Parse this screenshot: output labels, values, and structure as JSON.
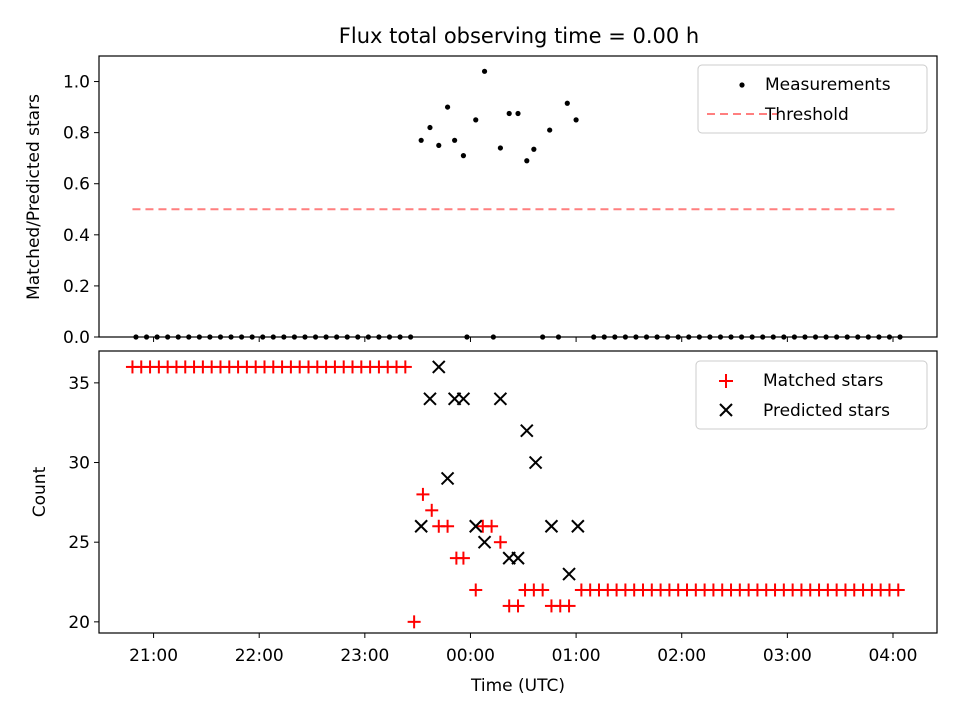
{
  "figure": {
    "title": "Flux total observing time = 0.00 h"
  },
  "chart_data": [
    {
      "type": "scatter",
      "title": "Flux total observing time = 0.00 h",
      "xlabel": "",
      "ylabel": "Matched/Predicted stars",
      "xlim": [
        "20:29",
        "04:25"
      ],
      "ylim": [
        0,
        1.1
      ],
      "yticks": [
        0.0,
        0.2,
        0.4,
        0.6,
        0.8,
        1.0
      ],
      "ytick_labels": [
        "0.0",
        "0.2",
        "0.4",
        "0.6",
        "0.8",
        "1.0"
      ],
      "grid": false,
      "legend_position": "top-right",
      "series": [
        {
          "name": "Measurements",
          "kind": "scatter",
          "color": "#000000",
          "marker": "dot",
          "points": [
            [
              "20:50",
              0
            ],
            [
              "20:56",
              0
            ],
            [
              "21:02",
              0
            ],
            [
              "21:08",
              0
            ],
            [
              "21:14",
              0
            ],
            [
              "21:20",
              0
            ],
            [
              "21:26",
              0
            ],
            [
              "21:32",
              0
            ],
            [
              "21:38",
              0
            ],
            [
              "21:44",
              0
            ],
            [
              "21:50",
              0
            ],
            [
              "21:56",
              0
            ],
            [
              "22:02",
              0
            ],
            [
              "22:08",
              0
            ],
            [
              "22:14",
              0
            ],
            [
              "22:20",
              0
            ],
            [
              "22:26",
              0
            ],
            [
              "22:32",
              0
            ],
            [
              "22:38",
              0
            ],
            [
              "22:44",
              0
            ],
            [
              "22:50",
              0
            ],
            [
              "22:56",
              0
            ],
            [
              "23:02",
              0
            ],
            [
              "23:08",
              0
            ],
            [
              "23:14",
              0
            ],
            [
              "23:20",
              0
            ],
            [
              "23:26",
              0
            ],
            [
              "23:32",
              0.77
            ],
            [
              "23:37",
              0.82
            ],
            [
              "23:42",
              0.75
            ],
            [
              "23:47",
              0.9
            ],
            [
              "23:51",
              0.77
            ],
            [
              "23:56",
              0.71
            ],
            [
              "23:58",
              0
            ],
            [
              "00:03",
              0.85
            ],
            [
              "00:08",
              1.04
            ],
            [
              "00:13",
              0
            ],
            [
              "00:17",
              0.74
            ],
            [
              "00:22",
              0.875
            ],
            [
              "00:27",
              0.875
            ],
            [
              "00:32",
              0.69
            ],
            [
              "00:36",
              0.735
            ],
            [
              "00:41",
              0
            ],
            [
              "00:45",
              0.81
            ],
            [
              "00:50",
              0
            ],
            [
              "00:55",
              0.915
            ],
            [
              "01:00",
              0.85
            ],
            [
              "01:10",
              0
            ],
            [
              "01:16",
              0
            ],
            [
              "01:22",
              0
            ],
            [
              "01:28",
              0
            ],
            [
              "01:34",
              0
            ],
            [
              "01:40",
              0
            ],
            [
              "01:46",
              0
            ],
            [
              "01:52",
              0
            ],
            [
              "01:58",
              0
            ],
            [
              "02:04",
              0
            ],
            [
              "02:10",
              0
            ],
            [
              "02:16",
              0
            ],
            [
              "02:22",
              0
            ],
            [
              "02:28",
              0
            ],
            [
              "02:34",
              0
            ],
            [
              "02:40",
              0
            ],
            [
              "02:46",
              0
            ],
            [
              "02:52",
              0
            ],
            [
              "02:58",
              0
            ],
            [
              "03:04",
              0
            ],
            [
              "03:10",
              0
            ],
            [
              "03:16",
              0
            ],
            [
              "03:22",
              0
            ],
            [
              "03:28",
              0
            ],
            [
              "03:34",
              0
            ],
            [
              "03:40",
              0
            ],
            [
              "03:46",
              0
            ],
            [
              "03:52",
              0
            ],
            [
              "03:58",
              0
            ],
            [
              "04:04",
              0
            ]
          ]
        },
        {
          "name": "Threshold",
          "kind": "line",
          "color": "#ff7f7f",
          "dash": "dashed",
          "x": [
            "20:48",
            "04:03"
          ],
          "y": [
            0.5,
            0.5
          ]
        }
      ]
    },
    {
      "type": "scatter",
      "title": "",
      "xlabel": "Time (UTC)",
      "ylabel": "Count",
      "xlim": [
        "20:29",
        "04:25"
      ],
      "ylim": [
        19.3,
        37
      ],
      "yticks": [
        20,
        25,
        30,
        35
      ],
      "ytick_labels": [
        "20",
        "25",
        "30",
        "35"
      ],
      "xticks": [
        "21:00",
        "22:00",
        "23:00",
        "00:00",
        "01:00",
        "02:00",
        "03:00",
        "04:00"
      ],
      "xtick_labels": [
        "21:00",
        "22:00",
        "23:00",
        "00:00",
        "01:00",
        "02:00",
        "03:00",
        "04:00"
      ],
      "grid": false,
      "legend_position": "top-right",
      "series": [
        {
          "name": "Matched stars",
          "kind": "scatter",
          "color": "#ff0000",
          "marker": "plus",
          "points": [
            [
              "20:48",
              36
            ],
            [
              "20:53",
              36
            ],
            [
              "20:58",
              36
            ],
            [
              "21:03",
              36
            ],
            [
              "21:08",
              36
            ],
            [
              "21:13",
              36
            ],
            [
              "21:18",
              36
            ],
            [
              "21:23",
              36
            ],
            [
              "21:28",
              36
            ],
            [
              "21:33",
              36
            ],
            [
              "21:38",
              36
            ],
            [
              "21:43",
              36
            ],
            [
              "21:48",
              36
            ],
            [
              "21:53",
              36
            ],
            [
              "21:58",
              36
            ],
            [
              "22:03",
              36
            ],
            [
              "22:08",
              36
            ],
            [
              "22:13",
              36
            ],
            [
              "22:18",
              36
            ],
            [
              "22:23",
              36
            ],
            [
              "22:28",
              36
            ],
            [
              "22:33",
              36
            ],
            [
              "22:38",
              36
            ],
            [
              "22:43",
              36
            ],
            [
              "22:48",
              36
            ],
            [
              "22:53",
              36
            ],
            [
              "22:58",
              36
            ],
            [
              "23:03",
              36
            ],
            [
              "23:08",
              36
            ],
            [
              "23:13",
              36
            ],
            [
              "23:18",
              36
            ],
            [
              "23:23",
              36
            ],
            [
              "23:28",
              20
            ],
            [
              "23:33",
              28
            ],
            [
              "23:38",
              27
            ],
            [
              "23:42",
              26
            ],
            [
              "23:47",
              26
            ],
            [
              "23:52",
              24
            ],
            [
              "23:56",
              24
            ],
            [
              "00:03",
              22
            ],
            [
              "00:07",
              26
            ],
            [
              "00:12",
              26
            ],
            [
              "00:17",
              25
            ],
            [
              "00:22",
              21
            ],
            [
              "00:27",
              21
            ],
            [
              "00:31",
              22
            ],
            [
              "00:36",
              22
            ],
            [
              "00:41",
              22
            ],
            [
              "00:46",
              21
            ],
            [
              "00:51",
              21
            ],
            [
              "00:56",
              21
            ],
            [
              "01:03",
              22
            ],
            [
              "01:08",
              22
            ],
            [
              "01:13",
              22
            ],
            [
              "01:18",
              22
            ],
            [
              "01:23",
              22
            ],
            [
              "01:28",
              22
            ],
            [
              "01:33",
              22
            ],
            [
              "01:38",
              22
            ],
            [
              "01:43",
              22
            ],
            [
              "01:48",
              22
            ],
            [
              "01:53",
              22
            ],
            [
              "01:58",
              22
            ],
            [
              "02:03",
              22
            ],
            [
              "02:08",
              22
            ],
            [
              "02:13",
              22
            ],
            [
              "02:18",
              22
            ],
            [
              "02:23",
              22
            ],
            [
              "02:28",
              22
            ],
            [
              "02:33",
              22
            ],
            [
              "02:38",
              22
            ],
            [
              "02:43",
              22
            ],
            [
              "02:48",
              22
            ],
            [
              "02:53",
              22
            ],
            [
              "02:58",
              22
            ],
            [
              "03:03",
              22
            ],
            [
              "03:08",
              22
            ],
            [
              "03:13",
              22
            ],
            [
              "03:18",
              22
            ],
            [
              "03:23",
              22
            ],
            [
              "03:28",
              22
            ],
            [
              "03:33",
              22
            ],
            [
              "03:38",
              22
            ],
            [
              "03:43",
              22
            ],
            [
              "03:48",
              22
            ],
            [
              "03:53",
              22
            ],
            [
              "03:58",
              22
            ],
            [
              "04:03",
              22
            ]
          ]
        },
        {
          "name": "Predicted stars",
          "kind": "scatter",
          "color": "#000000",
          "marker": "x",
          "points": [
            [
              "23:32",
              26
            ],
            [
              "23:37",
              34
            ],
            [
              "23:42",
              36
            ],
            [
              "23:47",
              29
            ],
            [
              "23:51",
              34
            ],
            [
              "23:56",
              34
            ],
            [
              "00:03",
              26
            ],
            [
              "00:08",
              25
            ],
            [
              "00:17",
              34
            ],
            [
              "00:22",
              24
            ],
            [
              "00:27",
              24
            ],
            [
              "00:32",
              32
            ],
            [
              "00:37",
              30
            ],
            [
              "00:46",
              26
            ],
            [
              "00:56",
              23
            ],
            [
              "01:01",
              26
            ]
          ]
        }
      ]
    }
  ]
}
